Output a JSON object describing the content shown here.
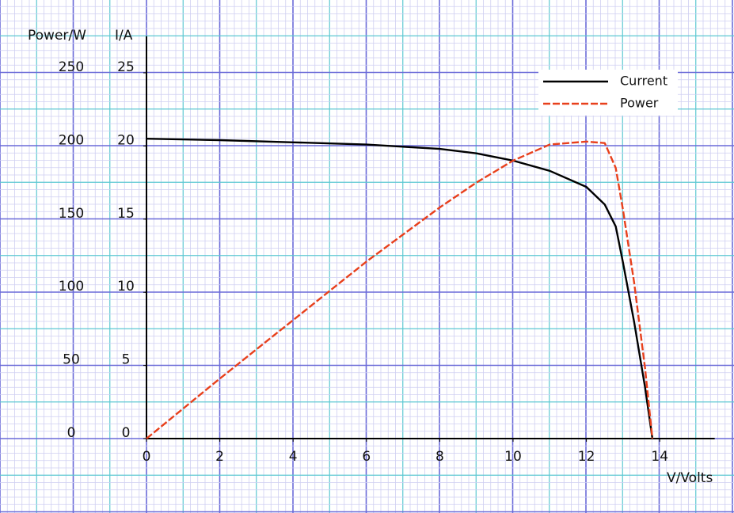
{
  "chart_data": {
    "type": "line",
    "x_label": "V/Volts",
    "y_label": "I/A",
    "y2_label": "Power/W",
    "x": [
      0,
      2,
      4,
      6,
      8,
      9,
      10,
      11,
      12,
      12.5,
      12.8,
      13,
      13.3,
      13.6,
      13.8
    ],
    "series": [
      {
        "name": "Current",
        "color": "#000000",
        "values": [
          20.5,
          20.4,
          20.25,
          20.1,
          19.8,
          19.5,
          19.0,
          18.3,
          17.2,
          16,
          14.5,
          12,
          8,
          3.5,
          0
        ]
      },
      {
        "name": "Power",
        "color": "#e8401c",
        "axis": "y2",
        "dashed": true,
        "values": [
          0,
          41,
          81,
          121,
          158,
          175,
          190,
          201,
          203,
          202,
          185,
          156,
          107,
          48,
          0
        ]
      }
    ],
    "xlim": [
      0,
      15.5
    ],
    "xticks": [
      0,
      2,
      4,
      6,
      8,
      10,
      12,
      14
    ],
    "ylim": [
      0,
      27.5
    ],
    "yticks": [
      0,
      5,
      10,
      15,
      20,
      25
    ],
    "y2lim": [
      0,
      275
    ],
    "y2ticks": [
      0,
      50,
      100,
      150,
      200,
      250
    ],
    "grid": true,
    "legend": "upper right"
  }
}
